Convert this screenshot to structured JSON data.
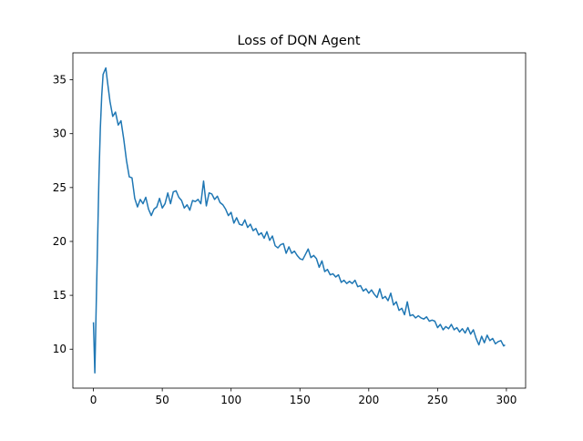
{
  "chart_data": {
    "type": "line",
    "title": "Loss of DQN Agent",
    "x": [
      0,
      1,
      2,
      3,
      4,
      5,
      6,
      7,
      8,
      9,
      10,
      11,
      12,
      14,
      16,
      18,
      20,
      22,
      24,
      26,
      28,
      30,
      32,
      34,
      36,
      38,
      40,
      42,
      44,
      46,
      48,
      50,
      52,
      54,
      56,
      58,
      60,
      62,
      64,
      66,
      68,
      70,
      72,
      74,
      76,
      78,
      80,
      82,
      84,
      86,
      88,
      90,
      92,
      94,
      96,
      98,
      100,
      102,
      104,
      106,
      108,
      110,
      112,
      114,
      116,
      118,
      120,
      122,
      124,
      126,
      128,
      130,
      132,
      134,
      136,
      138,
      140,
      142,
      144,
      146,
      148,
      150,
      152,
      154,
      156,
      158,
      160,
      162,
      164,
      166,
      168,
      170,
      172,
      174,
      176,
      178,
      180,
      182,
      184,
      186,
      188,
      190,
      192,
      194,
      196,
      198,
      200,
      202,
      204,
      206,
      208,
      210,
      212,
      214,
      216,
      218,
      220,
      222,
      224,
      226,
      228,
      230,
      232,
      234,
      236,
      238,
      240,
      242,
      244,
      246,
      248,
      250,
      252,
      254,
      256,
      258,
      260,
      262,
      264,
      266,
      268,
      270,
      272,
      274,
      276,
      278,
      280,
      282,
      284,
      286,
      288,
      290,
      292,
      294,
      296,
      298,
      299
    ],
    "series": [
      {
        "name": "loss",
        "color": "#1f77b4",
        "values": [
          12.5,
          7.8,
          14,
          20,
          26,
          30.5,
          33.5,
          35.5,
          35.8,
          36.1,
          35,
          34,
          33,
          31.6,
          32,
          30.8,
          31.2,
          29.5,
          27.5,
          26,
          25.9,
          24,
          23.2,
          23.9,
          23.5,
          24.1,
          23,
          22.4,
          23,
          23.2,
          24,
          23.1,
          23.5,
          24.5,
          23.5,
          24.6,
          24.7,
          24.1,
          23.8,
          23.1,
          23.4,
          22.9,
          23.8,
          23.7,
          23.9,
          23.5,
          25.6,
          23.3,
          24.5,
          24.4,
          23.9,
          24.2,
          23.6,
          23.4,
          23,
          22.4,
          22.7,
          21.7,
          22.2,
          21.6,
          21.5,
          22,
          21.3,
          21.6,
          21,
          21.2,
          20.6,
          20.8,
          20.3,
          20.9,
          20.1,
          20.5,
          19.6,
          19.4,
          19.7,
          19.8,
          18.9,
          19.5,
          18.9,
          19.1,
          18.7,
          18.4,
          18.3,
          18.8,
          19.3,
          18.5,
          18.7,
          18.4,
          17.6,
          18.2,
          17.2,
          17.4,
          16.9,
          17,
          16.7,
          16.9,
          16.2,
          16.4,
          16.1,
          16.3,
          16.1,
          16.4,
          15.8,
          15.9,
          15.4,
          15.6,
          15.2,
          15.5,
          15.1,
          14.8,
          15.6,
          14.7,
          14.9,
          14.5,
          15.2,
          14.1,
          14.4,
          13.6,
          13.8,
          13.2,
          14.4,
          13.1,
          13.2,
          12.9,
          13.1,
          12.9,
          12.8,
          13,
          12.6,
          12.7,
          12.6,
          12,
          12.3,
          11.8,
          12.1,
          11.9,
          12.3,
          11.8,
          12,
          11.6,
          11.9,
          11.5,
          12,
          11.4,
          11.8,
          11,
          10.4,
          11.2,
          10.6,
          11.3,
          10.8,
          11,
          10.5,
          10.7,
          10.8,
          10.3,
          10.4
        ]
      }
    ],
    "xlim": [
      -14.95,
      313.95
    ],
    "ylim": [
      6.385,
      37.5
    ],
    "xticks": [
      0,
      50,
      100,
      150,
      200,
      250,
      300
    ],
    "yticks": [
      10,
      15,
      20,
      25,
      30,
      35
    ]
  }
}
